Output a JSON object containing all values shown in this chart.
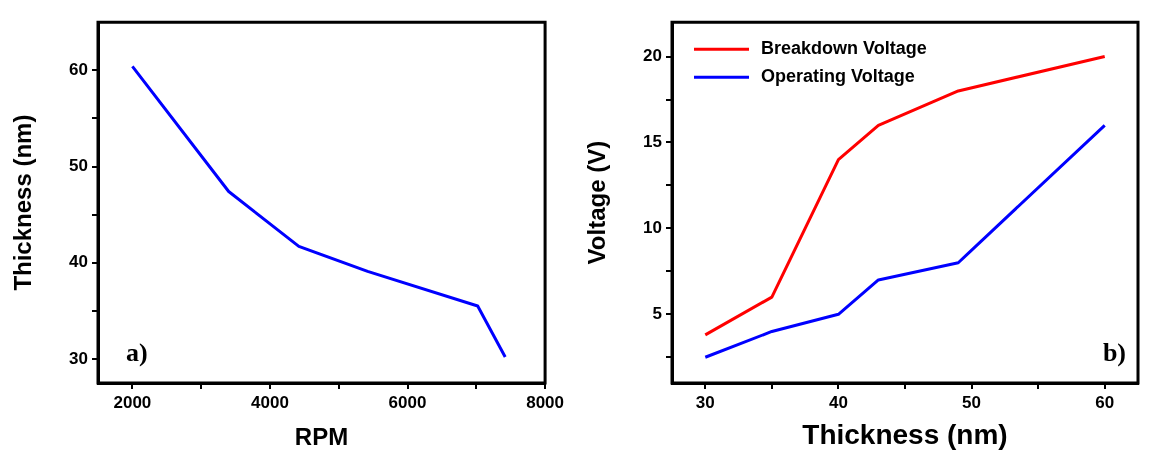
{
  "chart_data": [
    {
      "type": "line",
      "xlabel": "RPM",
      "ylabel": "Thickness (nm)",
      "x": [
        2000,
        3400,
        4420,
        5420,
        7020,
        7420
      ],
      "series": [
        {
          "color": "#0000ff",
          "values": [
            60.4,
            47.4,
            41.7,
            39.1,
            35.5,
            30.2
          ]
        }
      ],
      "xlim": [
        1500,
        8000
      ],
      "xticks": [
        2000,
        {
          "value": 3000,
          "label": null
        },
        4000,
        {
          "value": 5000,
          "label": null
        },
        6000,
        {
          "value": 7000,
          "label": null
        },
        8000
      ],
      "ylim": [
        27.5,
        65
      ],
      "yticks": [
        30,
        {
          "value": 35,
          "label": null
        },
        40,
        {
          "value": 45,
          "label": null
        },
        50,
        {
          "value": 55,
          "label": null
        },
        60
      ],
      "annotations": [
        "a)"
      ],
      "legend": false,
      "grid": false
    },
    {
      "type": "line",
      "xlabel": "Thickness (nm)",
      "ylabel": "Voltage (V)",
      "x": [
        30,
        35,
        40,
        43,
        49,
        60
      ],
      "series": [
        {
          "name": "Breakdown Voltage",
          "color": "#ff0000",
          "values": [
            3.8,
            6,
            14,
            16,
            18,
            20
          ]
        },
        {
          "name": "Operating Voltage",
          "color": "#0000ff",
          "values": [
            2.5,
            4,
            5,
            7,
            8,
            16
          ]
        }
      ],
      "xlim": [
        27.5,
        62.5
      ],
      "xticks": [
        30,
        {
          "value": 35,
          "label": null
        },
        40,
        {
          "value": 45,
          "label": null
        },
        50,
        {
          "value": 55,
          "label": null
        },
        60
      ],
      "ylim": [
        1,
        22
      ],
      "yticks": [
        {
          "value": 2.5,
          "label": null
        },
        5,
        {
          "value": 7.5,
          "label": null
        },
        10,
        {
          "value": 12.5,
          "label": null
        },
        15,
        {
          "value": 17.5,
          "label": null
        },
        20
      ],
      "annotations": [
        "b)"
      ],
      "legend": "top left",
      "grid": false
    }
  ]
}
